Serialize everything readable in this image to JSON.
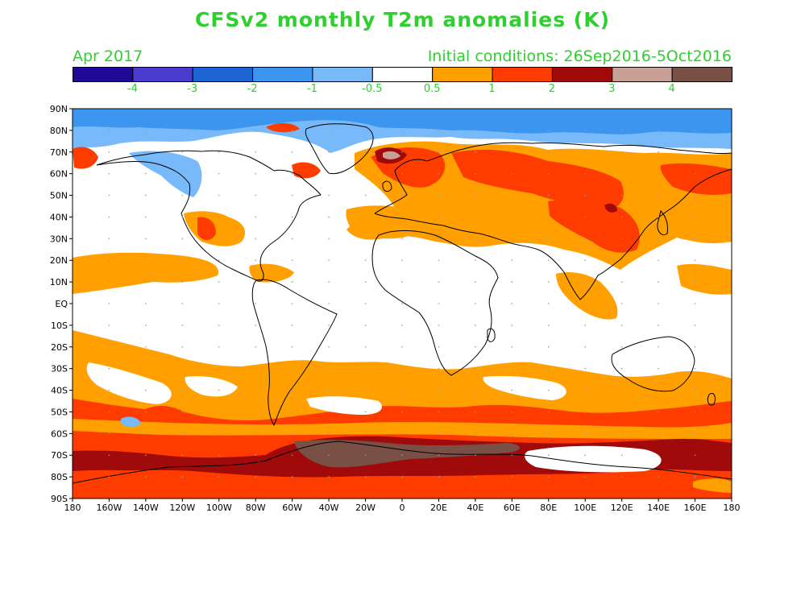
{
  "title": "CFSv2 monthly T2m anomalies (K)",
  "valid_month": "Apr 2017",
  "initial_conditions": "Initial conditions: 26Sep2016-5Oct2016",
  "colors": {
    "text": "#2fcf2f",
    "ocean_land_neutral": "#ffffff",
    "coastline": "#000000"
  },
  "colorbar": {
    "bins": [
      {
        "color": "#1e0a96"
      },
      {
        "color": "#4b3ccd"
      },
      {
        "color": "#1e64d2"
      },
      {
        "color": "#3c96f0"
      },
      {
        "color": "#78b9fa"
      },
      {
        "color": "#ffffff"
      },
      {
        "color": "#ffa000"
      },
      {
        "color": "#ff3c00"
      },
      {
        "color": "#a00a0a"
      },
      {
        "color": "#c8a096"
      },
      {
        "color": "#785046"
      }
    ],
    "labels": [
      "-4",
      "-3",
      "-2",
      "-1",
      "-0.5",
      "0.5",
      "1",
      "2",
      "3",
      "4"
    ]
  },
  "map": {
    "projection": "cylindrical equidistant",
    "lon_range": [
      -180,
      180
    ],
    "lat_range": [
      -90,
      90
    ],
    "lat_labels": [
      "90N",
      "80N",
      "70N",
      "60N",
      "50N",
      "40N",
      "30N",
      "20N",
      "10N",
      "EQ",
      "10S",
      "20S",
      "30S",
      "40S",
      "50S",
      "60S",
      "70S",
      "80S",
      "90S"
    ],
    "lon_labels": [
      "180",
      "160W",
      "140W",
      "120W",
      "100W",
      "80W",
      "60W",
      "40W",
      "20W",
      "0",
      "20E",
      "40E",
      "60E",
      "80E",
      "100E",
      "120E",
      "140E",
      "160E",
      "180"
    ]
  }
}
